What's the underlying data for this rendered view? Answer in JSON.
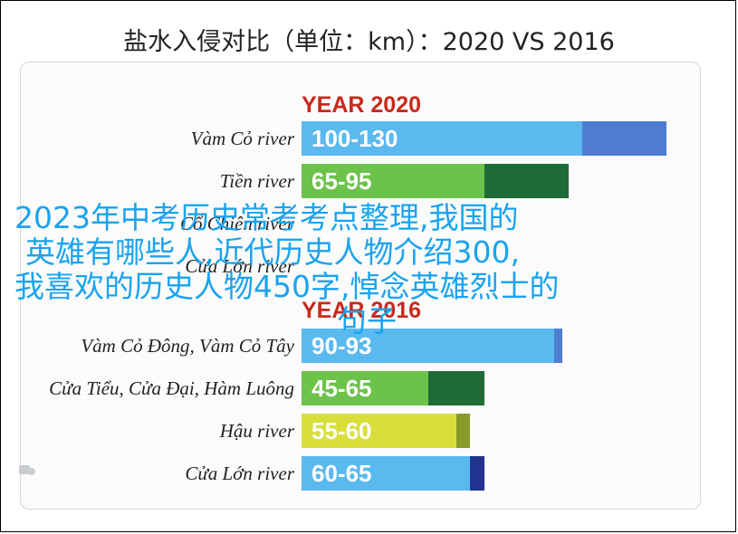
{
  "title": "盐水入侵对比（单位：km）：2020 VS 2016",
  "overlay_lines": [
    "2023年中考历史常考考点整理,我国的",
    "英雄有哪些人,近代历史人物介绍300,",
    "我喜欢的历史人物450字,悼念英雄烈士的",
    "句子"
  ],
  "colors": {
    "year_label": "#c8291c",
    "overlay_text": "#1aa3ef"
  },
  "chart_data": [
    {
      "type": "bar",
      "title": "YEAR 2020",
      "categories": [
        "Vàm Cỏ river",
        "Tiền river",
        "Cổ Chiên river",
        "Cửa Lớn river"
      ],
      "value_labels": [
        "100-130",
        "65-95",
        "",
        ""
      ],
      "ranges": [
        [
          100,
          130
        ],
        [
          65,
          95
        ],
        null,
        null
      ],
      "colors": [
        [
          "#5ab9ee",
          "#4e7dd0"
        ],
        [
          "#6cc24a",
          "#1f6b35"
        ],
        [
          "#d8df3a",
          "#8a9a2a"
        ],
        [
          "#5ab9ee",
          "#24328f"
        ]
      ]
    },
    {
      "type": "bar",
      "title": "YEAR 2016",
      "categories": [
        "Vàm Cỏ Đông, Vàm Cỏ Tây",
        "Cửa Tiểu, Cửa Đại, Hàm Luông",
        "Hậu river",
        "Cửa Lớn river"
      ],
      "value_labels": [
        "90-93",
        "45-65",
        "55-60",
        "60-65"
      ],
      "ranges": [
        [
          90,
          93
        ],
        [
          45,
          65
        ],
        [
          55,
          60
        ],
        [
          60,
          65
        ]
      ],
      "colors": [
        [
          "#5ab9ee",
          "#4e7dd0"
        ],
        [
          "#6cc24a",
          "#1f6b35"
        ],
        [
          "#d8df3a",
          "#8a9a2a"
        ],
        [
          "#5ab9ee",
          "#24328f"
        ]
      ]
    }
  ]
}
